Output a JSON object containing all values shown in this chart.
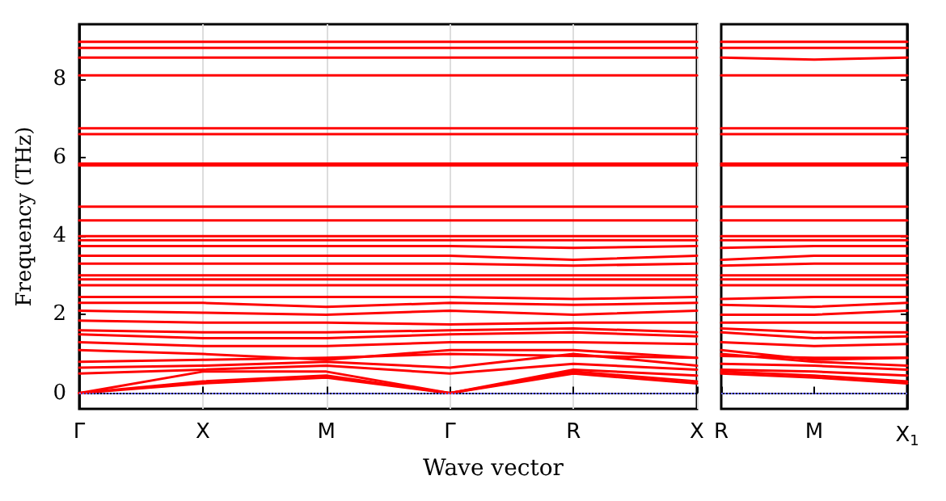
{
  "chart_data": [
    {
      "type": "line",
      "ylabel": "Frequency (THz)",
      "xlabel": "Wave vector",
      "categories": [
        "Γ",
        "X",
        "M",
        "Γ",
        "R",
        "X"
      ],
      "ylim": [
        -0.4,
        9.4
      ],
      "yticks": [
        0,
        2,
        4,
        6,
        8
      ],
      "grid": "x",
      "marker": "none",
      "line_style": "solid",
      "ref_lines": [
        {
          "axis": "y",
          "value": 0,
          "color": "#6666ff",
          "line_style": "dotted"
        }
      ],
      "series": [
        {
          "color": "#ff0000",
          "values": [
            0,
            0.25,
            0.4,
            0,
            0.5,
            0.25
          ]
        },
        {
          "color": "#ff0000",
          "values": [
            0,
            0.3,
            0.45,
            0,
            0.55,
            0.3
          ]
        },
        {
          "color": "#ff0000",
          "values": [
            0,
            0.55,
            0.55,
            0,
            0.6,
            0.45
          ]
        },
        {
          "color": "#ff0000",
          "values": [
            0.5,
            0.6,
            0.7,
            0.5,
            0.75,
            0.6
          ]
        },
        {
          "color": "#ff0000",
          "values": [
            0.65,
            0.7,
            0.8,
            0.65,
            1.0,
            0.7
          ]
        },
        {
          "color": "#ff0000",
          "values": [
            0.8,
            0.85,
            0.9,
            1.0,
            0.95,
            0.9
          ]
        },
        {
          "color": "#ff0000",
          "values": [
            1.1,
            1.0,
            0.85,
            1.1,
            1.1,
            0.9
          ]
        },
        {
          "color": "#ff0000",
          "values": [
            1.3,
            1.2,
            1.2,
            1.3,
            1.3,
            1.25
          ]
        },
        {
          "color": "#ff0000",
          "values": [
            1.5,
            1.4,
            1.4,
            1.5,
            1.55,
            1.45
          ]
        },
        {
          "color": "#ff0000",
          "values": [
            1.6,
            1.55,
            1.55,
            1.6,
            1.65,
            1.55
          ]
        },
        {
          "color": "#ff0000",
          "values": [
            1.85,
            1.8,
            1.8,
            1.75,
            1.8,
            1.8
          ]
        },
        {
          "color": "#ff0000",
          "values": [
            2.1,
            2.05,
            2.0,
            2.1,
            2.0,
            2.1
          ]
        },
        {
          "color": "#ff0000",
          "values": [
            2.3,
            2.3,
            2.2,
            2.3,
            2.25,
            2.3
          ]
        },
        {
          "color": "#ff0000",
          "values": [
            2.45,
            2.45,
            2.45,
            2.45,
            2.4,
            2.45
          ]
        },
        {
          "color": "#ff0000",
          "values": [
            2.75,
            2.75,
            2.75,
            2.75,
            2.75,
            2.75
          ]
        },
        {
          "color": "#ff0000",
          "values": [
            2.9,
            2.9,
            2.9,
            2.9,
            2.9,
            2.9
          ]
        },
        {
          "color": "#ff0000",
          "values": [
            3.0,
            3.0,
            3.0,
            3.0,
            3.0,
            3.0
          ]
        },
        {
          "color": "#ff0000",
          "values": [
            3.3,
            3.3,
            3.3,
            3.3,
            3.25,
            3.3
          ]
        },
        {
          "color": "#ff0000",
          "values": [
            3.5,
            3.5,
            3.5,
            3.5,
            3.4,
            3.5
          ]
        },
        {
          "color": "#ff0000",
          "values": [
            3.75,
            3.75,
            3.75,
            3.75,
            3.7,
            3.75
          ]
        },
        {
          "color": "#ff0000",
          "values": [
            3.9,
            3.9,
            3.9,
            3.9,
            3.9,
            3.9
          ]
        },
        {
          "color": "#ff0000",
          "values": [
            4.0,
            4.0,
            4.0,
            4.0,
            4.0,
            4.0
          ]
        },
        {
          "color": "#ff0000",
          "values": [
            4.4,
            4.4,
            4.4,
            4.4,
            4.4,
            4.4
          ]
        },
        {
          "color": "#ff0000",
          "values": [
            4.75,
            4.75,
            4.75,
            4.75,
            4.75,
            4.75
          ]
        },
        {
          "color": "#ff0000",
          "values": [
            5.8,
            5.8,
            5.8,
            5.8,
            5.8,
            5.8
          ]
        },
        {
          "color": "#ff0000",
          "values": [
            5.85,
            5.85,
            5.85,
            5.85,
            5.85,
            5.85
          ]
        },
        {
          "color": "#ff0000",
          "values": [
            6.6,
            6.6,
            6.6,
            6.6,
            6.6,
            6.6
          ]
        },
        {
          "color": "#ff0000",
          "values": [
            6.75,
            6.75,
            6.75,
            6.75,
            6.75,
            6.75
          ]
        },
        {
          "color": "#ff0000",
          "values": [
            8.1,
            8.1,
            8.1,
            8.1,
            8.1,
            8.1
          ]
        },
        {
          "color": "#ff0000",
          "values": [
            8.55,
            8.55,
            8.55,
            8.55,
            8.55,
            8.55
          ]
        },
        {
          "color": "#ff0000",
          "values": [
            8.8,
            8.8,
            8.8,
            8.8,
            8.8,
            8.8
          ]
        },
        {
          "color": "#ff0000",
          "values": [
            8.95,
            8.95,
            8.95,
            8.95,
            8.95,
            8.95
          ]
        }
      ]
    },
    {
      "type": "line",
      "categories": [
        "R",
        "M",
        "X$_{1}$"
      ],
      "ylim": [
        -0.4,
        9.4
      ],
      "yticks": [
        0,
        2,
        4,
        6,
        8
      ],
      "tick_labels": "x",
      "marker": "none",
      "line_style": "solid",
      "ref_lines": [
        {
          "axis": "y",
          "value": 0,
          "color": "#6666ff",
          "line_style": "dotted"
        }
      ],
      "series": [
        {
          "color": "#ff0000",
          "values": [
            0.5,
            0.4,
            0.25
          ]
        },
        {
          "color": "#ff0000",
          "values": [
            0.55,
            0.45,
            0.3
          ]
        },
        {
          "color": "#ff0000",
          "values": [
            0.6,
            0.55,
            0.45
          ]
        },
        {
          "color": "#ff0000",
          "values": [
            0.75,
            0.7,
            0.6
          ]
        },
        {
          "color": "#ff0000",
          "values": [
            1.0,
            0.8,
            0.7
          ]
        },
        {
          "color": "#ff0000",
          "values": [
            0.95,
            0.9,
            0.9
          ]
        },
        {
          "color": "#ff0000",
          "values": [
            1.1,
            0.85,
            0.9
          ]
        },
        {
          "color": "#ff0000",
          "values": [
            1.3,
            1.2,
            1.25
          ]
        },
        {
          "color": "#ff0000",
          "values": [
            1.55,
            1.4,
            1.45
          ]
        },
        {
          "color": "#ff0000",
          "values": [
            1.65,
            1.55,
            1.55
          ]
        },
        {
          "color": "#ff0000",
          "values": [
            1.8,
            1.8,
            1.8
          ]
        },
        {
          "color": "#ff0000",
          "values": [
            2.0,
            2.0,
            2.1
          ]
        },
        {
          "color": "#ff0000",
          "values": [
            2.25,
            2.2,
            2.3
          ]
        },
        {
          "color": "#ff0000",
          "values": [
            2.4,
            2.45,
            2.45
          ]
        },
        {
          "color": "#ff0000",
          "values": [
            2.75,
            2.75,
            2.75
          ]
        },
        {
          "color": "#ff0000",
          "values": [
            2.9,
            2.9,
            2.9
          ]
        },
        {
          "color": "#ff0000",
          "values": [
            3.0,
            3.0,
            3.0
          ]
        },
        {
          "color": "#ff0000",
          "values": [
            3.25,
            3.3,
            3.3
          ]
        },
        {
          "color": "#ff0000",
          "values": [
            3.4,
            3.5,
            3.5
          ]
        },
        {
          "color": "#ff0000",
          "values": [
            3.7,
            3.75,
            3.75
          ]
        },
        {
          "color": "#ff0000",
          "values": [
            3.9,
            3.9,
            3.9
          ]
        },
        {
          "color": "#ff0000",
          "values": [
            4.0,
            4.0,
            4.0
          ]
        },
        {
          "color": "#ff0000",
          "values": [
            4.4,
            4.4,
            4.4
          ]
        },
        {
          "color": "#ff0000",
          "values": [
            4.75,
            4.75,
            4.75
          ]
        },
        {
          "color": "#ff0000",
          "values": [
            5.8,
            5.8,
            5.8
          ]
        },
        {
          "color": "#ff0000",
          "values": [
            5.85,
            5.85,
            5.85
          ]
        },
        {
          "color": "#ff0000",
          "values": [
            6.6,
            6.6,
            6.6
          ]
        },
        {
          "color": "#ff0000",
          "values": [
            6.75,
            6.75,
            6.75
          ]
        },
        {
          "color": "#ff0000",
          "values": [
            8.1,
            8.1,
            8.1
          ]
        },
        {
          "color": "#ff0000",
          "values": [
            8.55,
            8.5,
            8.55
          ]
        },
        {
          "color": "#ff0000",
          "values": [
            8.8,
            8.8,
            8.8
          ]
        },
        {
          "color": "#ff0000",
          "values": [
            8.95,
            8.95,
            8.95
          ]
        }
      ]
    }
  ]
}
